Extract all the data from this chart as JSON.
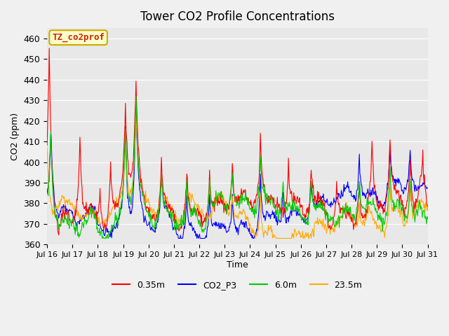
{
  "title": "Tower CO2 Profile Concentrations",
  "xlabel": "Time",
  "ylabel": "CO2 (ppm)",
  "ylim": [
    360,
    465
  ],
  "yticks": [
    360,
    370,
    380,
    390,
    400,
    410,
    420,
    430,
    440,
    450,
    460
  ],
  "annotation_text": "TZ_co2prof",
  "annotation_bg": "#ffffcc",
  "annotation_border": "#ccaa00",
  "annotation_text_color": "#cc2200",
  "series_colors": {
    "0.35m": "#ff0000",
    "CO2_P3": "#0000ff",
    "6.0m": "#00cc00",
    "23.5m": "#ffaa00"
  },
  "legend_labels": [
    "0.35m",
    "CO2_P3",
    "6.0m",
    "23.5m"
  ],
  "xtick_labels": [
    "Jul 16",
    "Jul 17",
    "Jul 18",
    "Jul 19",
    "Jul 20",
    "Jul 21",
    "Jul 22",
    "Jul 23",
    "Jul 24",
    "Jul 25",
    "Jul 26",
    "Jul 27",
    "Jul 28",
    "Jul 29",
    "Jul 30",
    "Jul 31"
  ],
  "plot_bg": "#e8e8e8",
  "grid_color": "#ffffff",
  "n_days": 15,
  "pts_per_day": 48
}
